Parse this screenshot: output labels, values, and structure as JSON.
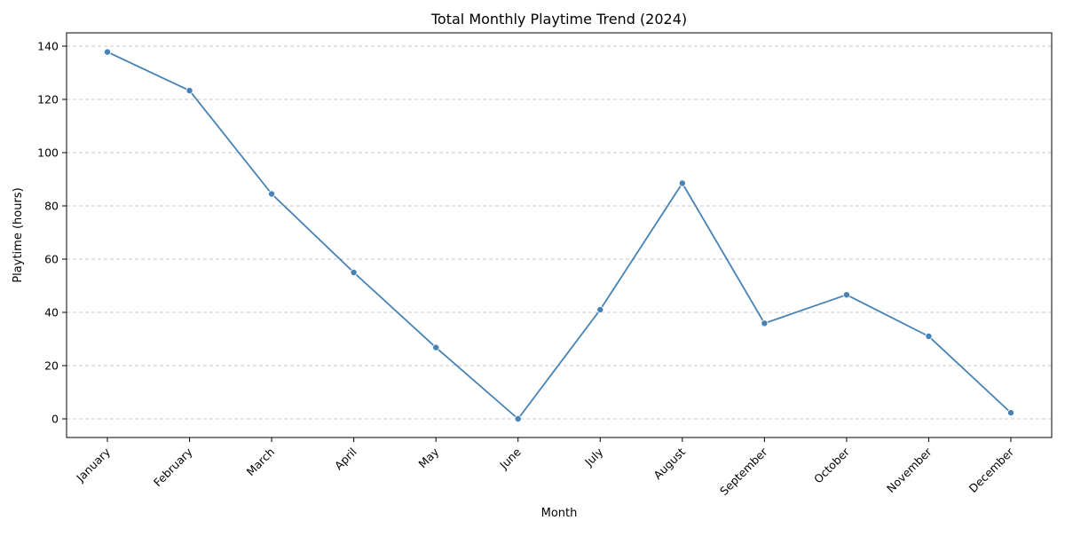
{
  "chart_data": {
    "type": "line",
    "title": "Total Monthly Playtime Trend (2024)",
    "xlabel": "Month",
    "ylabel": "Playtime (hours)",
    "categories": [
      "January",
      "February",
      "March",
      "April",
      "May",
      "June",
      "July",
      "August",
      "September",
      "October",
      "November",
      "December"
    ],
    "series": [
      {
        "values": [
          137.8,
          123.3,
          84.5,
          55.0,
          26.8,
          0.0,
          41.0,
          88.5,
          35.9,
          46.6,
          31.0,
          2.3
        ],
        "color": "#4682b4",
        "marker": "circle"
      }
    ],
    "ylim": [
      -7,
      145
    ],
    "yticks": [
      0,
      20,
      40,
      60,
      80,
      100,
      120,
      140
    ],
    "grid": {
      "y": true,
      "x": false,
      "style": "dashed"
    },
    "legend": "none",
    "x_tick_rotation": 45
  }
}
